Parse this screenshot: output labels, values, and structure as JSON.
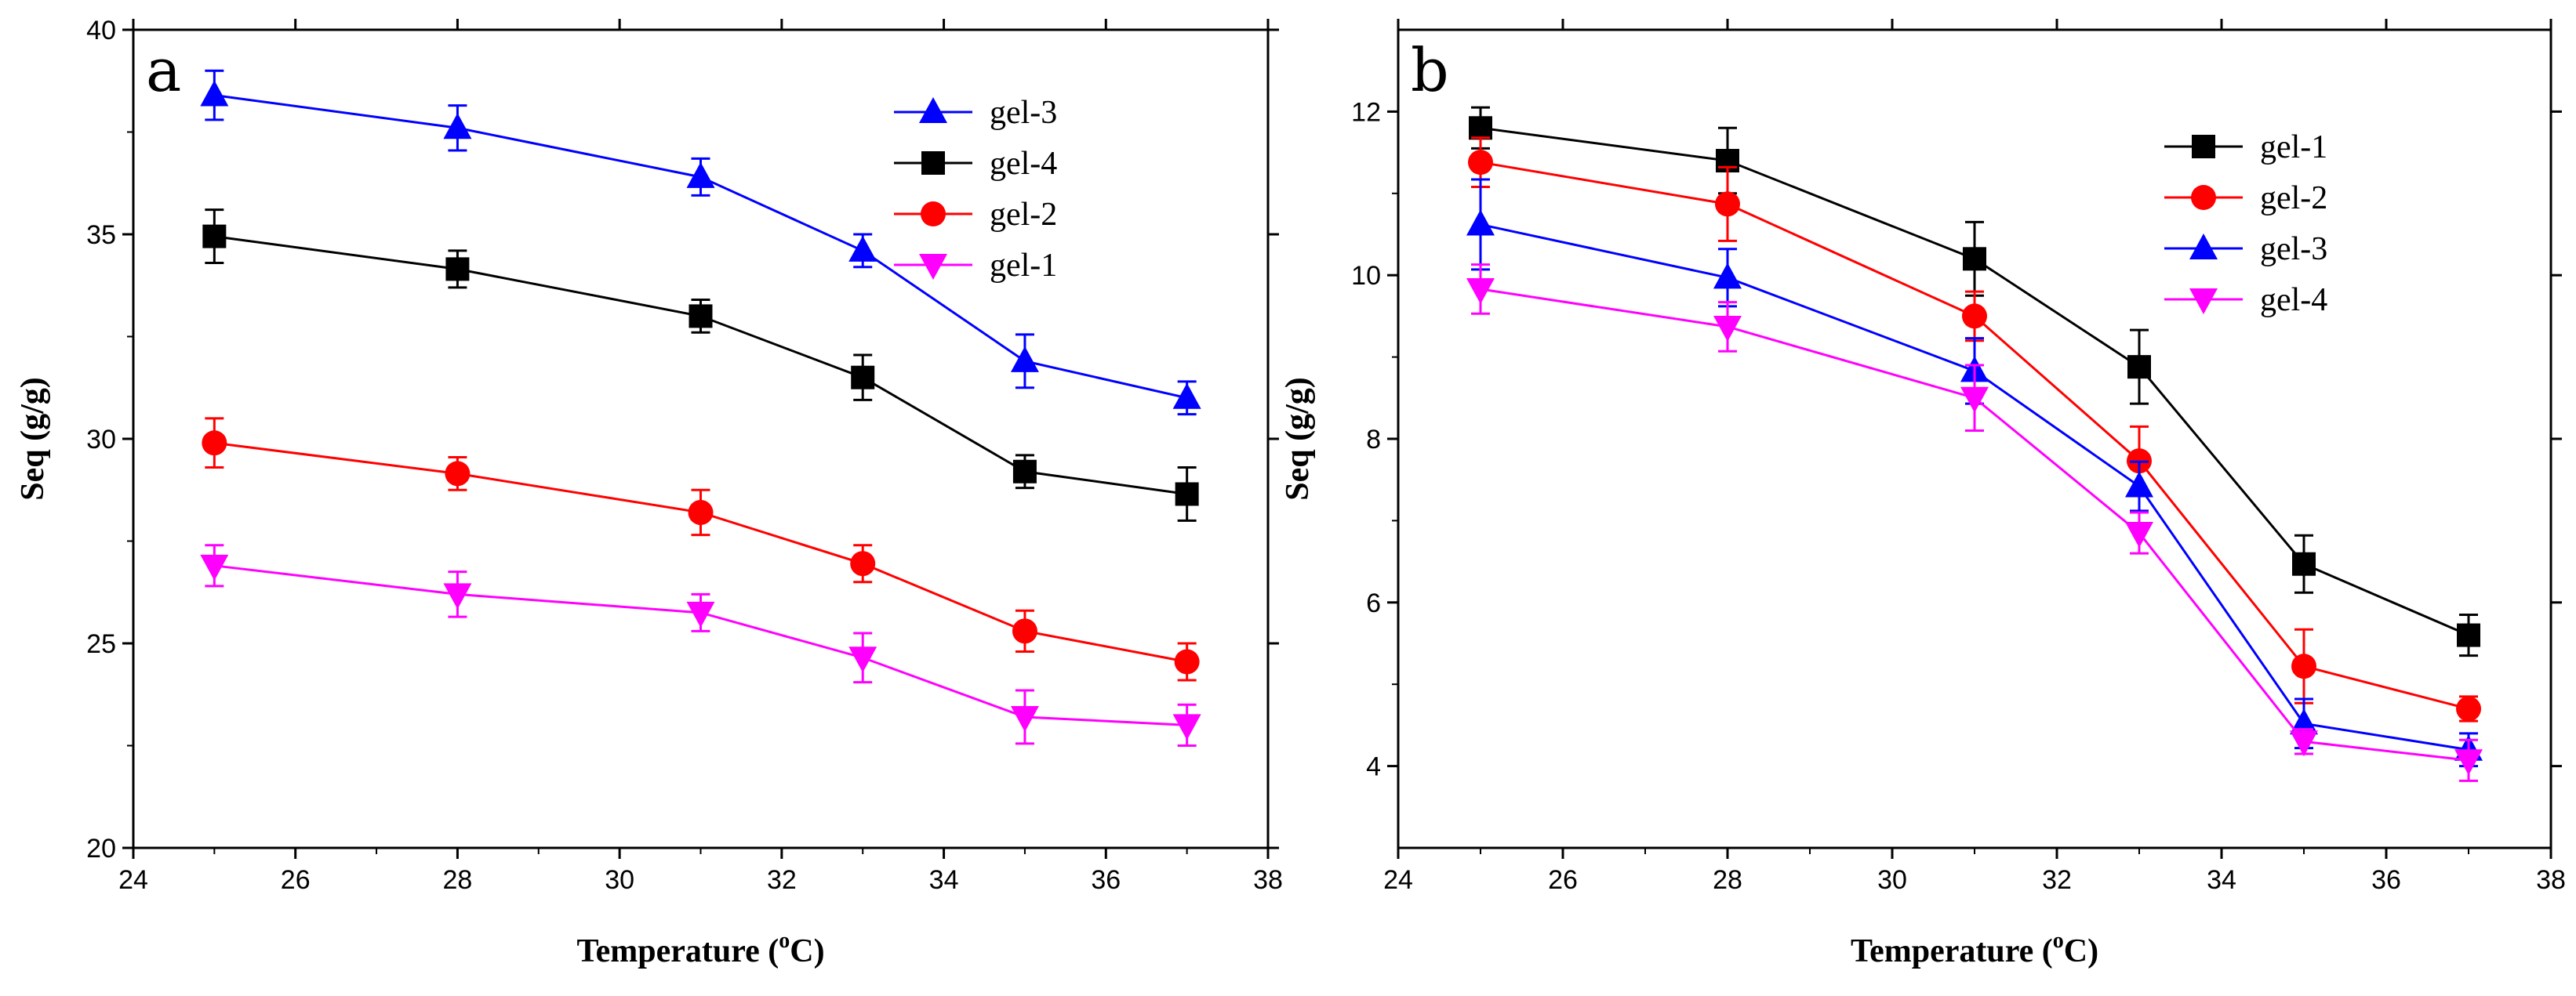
{
  "chart_data": [
    {
      "type": "line",
      "panel_label": "a",
      "xlabel": "Temperature (",
      "xlabel_sup": "o",
      "xlabel_unit": "C)",
      "ylabel": "Seq (g/g)",
      "xlim": [
        24,
        38
      ],
      "ylim": [
        20,
        40
      ],
      "xticks": [
        24,
        26,
        28,
        30,
        32,
        34,
        36,
        38
      ],
      "yticks": [
        20,
        25,
        30,
        35,
        40
      ],
      "x": [
        25,
        28,
        31,
        33,
        35,
        37
      ],
      "legend_position": "top-right",
      "series": [
        {
          "name": "gel-3",
          "color": "#0000ff",
          "marker": "triangle-up",
          "values": [
            38.4,
            37.6,
            36.4,
            34.6,
            31.9,
            31.0
          ],
          "errors": [
            0.6,
            0.55,
            0.45,
            0.4,
            0.65,
            0.4
          ]
        },
        {
          "name": "gel-4",
          "color": "#000000",
          "marker": "square",
          "values": [
            34.95,
            34.15,
            33.0,
            31.5,
            29.2,
            28.65
          ],
          "errors": [
            0.65,
            0.45,
            0.4,
            0.55,
            0.4,
            0.65
          ]
        },
        {
          "name": "gel-2",
          "color": "#ff0000",
          "marker": "circle",
          "values": [
            29.9,
            29.15,
            28.2,
            26.95,
            25.3,
            24.55
          ],
          "errors": [
            0.6,
            0.4,
            0.55,
            0.45,
            0.5,
            0.45
          ]
        },
        {
          "name": "gel-1",
          "color": "#ff00ff",
          "marker": "triangle-down",
          "values": [
            26.9,
            26.2,
            25.75,
            24.65,
            23.2,
            23.0
          ],
          "errors": [
            0.5,
            0.55,
            0.45,
            0.6,
            0.65,
            0.5
          ]
        }
      ]
    },
    {
      "type": "line",
      "panel_label": "b",
      "xlabel": "Temperature (",
      "xlabel_sup": "o",
      "xlabel_unit": "C)",
      "ylabel": "Seq (g/g)",
      "xlim": [
        24,
        38
      ],
      "ylim": [
        3,
        13
      ],
      "xticks": [
        24,
        26,
        28,
        30,
        32,
        34,
        36,
        38
      ],
      "yticks": [
        4,
        6,
        8,
        10,
        12
      ],
      "x": [
        25,
        28,
        31,
        33,
        35,
        37
      ],
      "legend_position": "top-right",
      "series": [
        {
          "name": "gel-1",
          "color": "#000000",
          "marker": "square",
          "values": [
            11.8,
            11.4,
            10.2,
            8.88,
            6.47,
            5.6
          ],
          "errors": [
            0.25,
            0.4,
            0.45,
            0.45,
            0.35,
            0.25
          ]
        },
        {
          "name": "gel-2",
          "color": "#ff0000",
          "marker": "circle",
          "values": [
            11.38,
            10.87,
            9.5,
            7.73,
            5.22,
            4.7
          ],
          "errors": [
            0.3,
            0.45,
            0.3,
            0.42,
            0.45,
            0.15
          ]
        },
        {
          "name": "gel-3",
          "color": "#0000ff",
          "marker": "triangle-up",
          "values": [
            10.62,
            9.97,
            8.83,
            7.42,
            4.52,
            4.2
          ],
          "errors": [
            0.55,
            0.35,
            0.4,
            0.3,
            0.3,
            0.2
          ]
        },
        {
          "name": "gel-4",
          "color": "#ff00ff",
          "marker": "triangle-down",
          "values": [
            9.83,
            9.37,
            8.5,
            6.85,
            4.3,
            4.07
          ],
          "errors": [
            0.3,
            0.3,
            0.4,
            0.25,
            0.15,
            0.25
          ]
        }
      ]
    }
  ]
}
